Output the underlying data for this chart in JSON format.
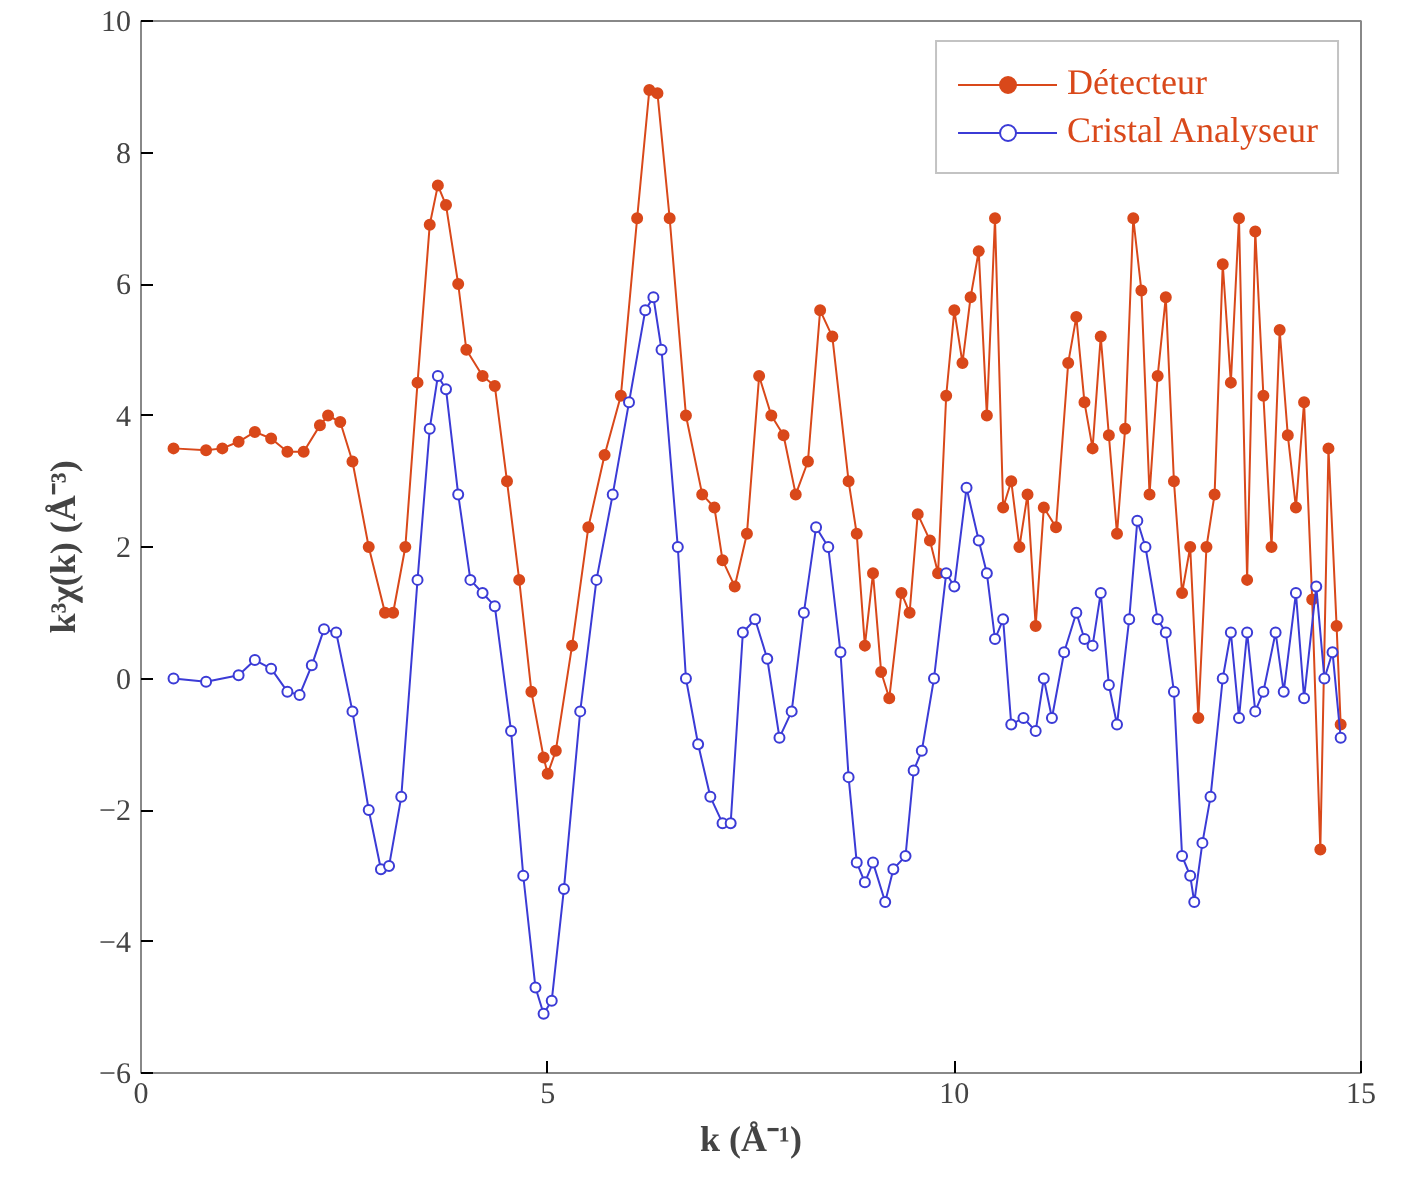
{
  "chart_data": {
    "type": "line",
    "xlabel": "k (Å⁻¹)",
    "ylabel": "k³χ(k) (Å⁻³)",
    "xlim": [
      0,
      15
    ],
    "xticks": [
      0,
      5,
      10,
      15
    ],
    "ylim": [
      -6,
      10
    ],
    "yticks": [
      -6,
      -4,
      -2,
      0,
      2,
      4,
      6,
      8,
      10
    ],
    "grid": false,
    "legend": "top right",
    "marker": "circle",
    "series": [
      {
        "name": "Détecteur",
        "color": "#d9481a",
        "x": [
          0.4,
          0.8,
          1.0,
          1.2,
          1.4,
          1.6,
          1.8,
          2.0,
          2.2,
          2.3,
          2.45,
          2.6,
          2.8,
          3.0,
          3.1,
          3.25,
          3.4,
          3.55,
          3.65,
          3.75,
          3.9,
          4.0,
          4.2,
          4.35,
          4.5,
          4.65,
          4.8,
          4.95,
          5.0,
          5.1,
          5.3,
          5.5,
          5.7,
          5.9,
          6.1,
          6.25,
          6.35,
          6.5,
          6.7,
          6.9,
          7.05,
          7.15,
          7.3,
          7.45,
          7.6,
          7.75,
          7.9,
          8.05,
          8.2,
          8.35,
          8.5,
          8.7,
          8.8,
          8.9,
          9.0,
          9.1,
          9.2,
          9.35,
          9.45,
          9.55,
          9.7,
          9.8,
          9.9,
          10.0,
          10.1,
          10.2,
          10.3,
          10.4,
          10.5,
          10.6,
          10.7,
          10.8,
          10.9,
          11.0,
          11.1,
          11.25,
          11.4,
          11.5,
          11.6,
          11.7,
          11.8,
          11.9,
          12.0,
          12.1,
          12.2,
          12.3,
          12.4,
          12.5,
          12.6,
          12.7,
          12.8,
          12.9,
          13.0,
          13.1,
          13.2,
          13.3,
          13.4,
          13.5,
          13.6,
          13.7,
          13.8,
          13.9,
          14.0,
          14.1,
          14.2,
          14.3,
          14.4,
          14.5,
          14.6,
          14.7,
          14.75
        ],
        "values": [
          3.5,
          3.47,
          3.5,
          3.6,
          3.75,
          3.65,
          3.45,
          3.45,
          3.85,
          4.0,
          3.9,
          3.3,
          2.0,
          1.0,
          1.0,
          2.0,
          4.5,
          6.9,
          7.5,
          7.2,
          6.0,
          5.0,
          4.6,
          4.45,
          3.0,
          1.5,
          -0.2,
          -1.2,
          -1.45,
          -1.1,
          0.5,
          2.3,
          3.4,
          4.3,
          7.0,
          8.95,
          8.9,
          7.0,
          4.0,
          2.8,
          2.6,
          1.8,
          1.4,
          2.2,
          4.6,
          4.0,
          3.7,
          2.8,
          3.3,
          5.6,
          5.2,
          3.0,
          2.2,
          0.5,
          1.6,
          0.1,
          -0.3,
          1.3,
          1.0,
          2.5,
          2.1,
          1.6,
          4.3,
          5.6,
          4.8,
          5.8,
          6.5,
          4.0,
          7.0,
          2.6,
          3.0,
          2.0,
          2.8,
          0.8,
          2.6,
          2.3,
          4.8,
          5.5,
          4.2,
          3.5,
          5.2,
          3.7,
          2.2,
          3.8,
          7.0,
          5.9,
          2.8,
          4.6,
          5.8,
          3.0,
          1.3,
          2.0,
          -0.6,
          2.0,
          2.8,
          6.3,
          4.5,
          7.0,
          1.5,
          6.8,
          4.3,
          2.0,
          5.3,
          3.7,
          2.6,
          4.2,
          1.2,
          -2.6,
          3.5,
          0.8,
          -0.7
        ]
      },
      {
        "name": "Cristal Analyseur",
        "color": "#3b3bd6",
        "x": [
          0.4,
          0.8,
          1.2,
          1.4,
          1.6,
          1.8,
          1.95,
          2.1,
          2.25,
          2.4,
          2.6,
          2.8,
          2.95,
          3.05,
          3.2,
          3.4,
          3.55,
          3.65,
          3.75,
          3.9,
          4.05,
          4.2,
          4.35,
          4.55,
          4.7,
          4.85,
          4.95,
          5.05,
          5.2,
          5.4,
          5.6,
          5.8,
          6.0,
          6.2,
          6.3,
          6.4,
          6.6,
          6.7,
          6.85,
          7.0,
          7.15,
          7.25,
          7.4,
          7.55,
          7.7,
          7.85,
          8.0,
          8.15,
          8.3,
          8.45,
          8.6,
          8.7,
          8.8,
          8.9,
          9.0,
          9.15,
          9.25,
          9.4,
          9.5,
          9.6,
          9.75,
          9.9,
          10.0,
          10.15,
          10.3,
          10.4,
          10.5,
          10.6,
          10.7,
          10.85,
          11.0,
          11.1,
          11.2,
          11.35,
          11.5,
          11.6,
          11.7,
          11.8,
          11.9,
          12.0,
          12.15,
          12.25,
          12.35,
          12.5,
          12.6,
          12.7,
          12.8,
          12.9,
          12.95,
          13.05,
          13.15,
          13.3,
          13.4,
          13.5,
          13.6,
          13.7,
          13.8,
          13.95,
          14.05,
          14.2,
          14.3,
          14.45,
          14.55,
          14.65,
          14.75
        ],
        "values": [
          0,
          -0.05,
          0.05,
          0.28,
          0.15,
          -0.2,
          -0.25,
          0.2,
          0.75,
          0.7,
          -0.5,
          -2.0,
          -2.9,
          -2.85,
          -1.8,
          1.5,
          3.8,
          4.6,
          4.4,
          2.8,
          1.5,
          1.3,
          1.1,
          -0.8,
          -3.0,
          -4.7,
          -5.1,
          -4.9,
          -3.2,
          -0.5,
          1.5,
          2.8,
          4.2,
          5.6,
          5.8,
          5.0,
          2.0,
          0.0,
          -1.0,
          -1.8,
          -2.2,
          -2.2,
          0.7,
          0.9,
          0.3,
          -0.9,
          -0.5,
          1.0,
          2.3,
          2.0,
          0.4,
          -1.5,
          -2.8,
          -3.1,
          -2.8,
          -3.4,
          -2.9,
          -2.7,
          -1.4,
          -1.1,
          0.0,
          1.6,
          1.4,
          2.9,
          2.1,
          1.6,
          0.6,
          0.9,
          -0.7,
          -0.6,
          -0.8,
          0.0,
          -0.6,
          0.4,
          1.0,
          0.6,
          0.5,
          1.3,
          -0.1,
          -0.7,
          0.9,
          2.4,
          2.0,
          0.9,
          0.7,
          -0.2,
          -2.7,
          -3.0,
          -3.4,
          -2.5,
          -1.8,
          0.0,
          0.7,
          -0.6,
          0.7,
          -0.5,
          -0.2,
          0.7,
          -0.2,
          1.3,
          -0.3,
          1.4,
          0.0,
          0.4,
          -0.9
        ]
      }
    ]
  }
}
